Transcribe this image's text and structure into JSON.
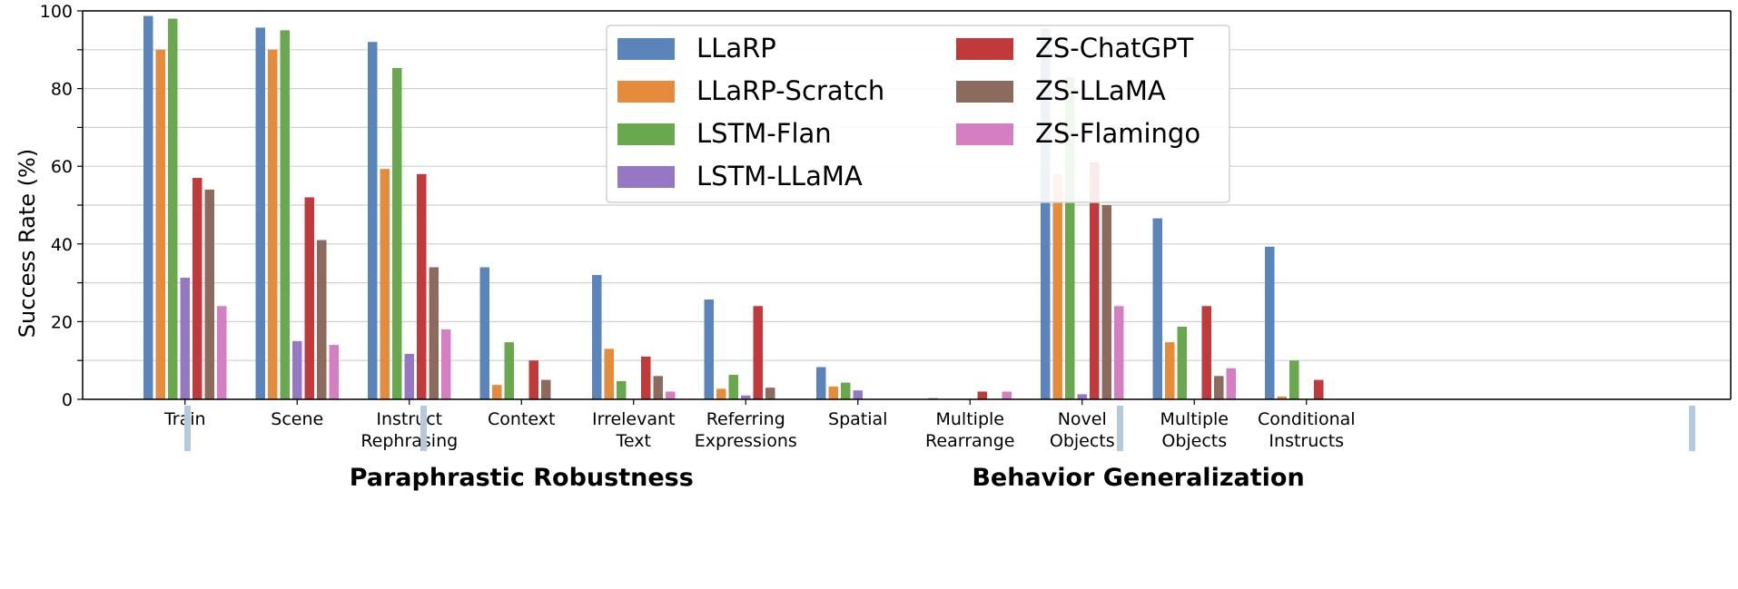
{
  "chart_data": {
    "type": "bar",
    "ylabel": "Success Rate (%)",
    "ylim": [
      0,
      100
    ],
    "yticks": [
      0,
      20,
      40,
      60,
      80,
      100
    ],
    "grid": true,
    "legend_position": "top-center",
    "categories": [
      [
        "Train"
      ],
      [
        "Scene"
      ],
      [
        "Instruct",
        "Rephrasing"
      ],
      [
        "Context"
      ],
      [
        "Irrelevant",
        "Text"
      ],
      [
        "Referring",
        "Expressions"
      ],
      [
        "Spatial"
      ],
      [
        "Multiple",
        "Rearrange"
      ],
      [
        "Novel",
        "Objects"
      ],
      [
        "Multiple",
        "Objects"
      ],
      [
        "Conditional",
        "Instructs"
      ]
    ],
    "series": [
      {
        "name": "LLaRP",
        "color": "#5b84bb",
        "values": [
          98.7,
          95.7,
          92,
          34,
          32,
          25.7,
          8.3,
          0.3,
          95.4,
          46.6,
          39.3
        ]
      },
      {
        "name": "LLaRP-Scratch",
        "color": "#e68a3c",
        "values": [
          90,
          90,
          59.3,
          3.7,
          13,
          2.7,
          3.3,
          0,
          58,
          14.7,
          0.7
        ]
      },
      {
        "name": "LSTM-Flan",
        "color": "#6aa84f",
        "values": [
          98,
          95,
          85.3,
          14.7,
          4.7,
          6.3,
          4.3,
          0,
          83,
          18.7,
          10
        ]
      },
      {
        "name": "LSTM-LLaMA",
        "color": "#9677c4",
        "values": [
          31.3,
          15,
          11.7,
          0,
          0,
          1,
          2.3,
          0,
          1.3,
          0,
          0
        ]
      },
      {
        "name": "ZS-ChatGPT",
        "color": "#c0393b",
        "values": [
          57,
          52,
          58,
          10,
          11,
          24,
          0,
          2,
          61,
          24,
          5
        ]
      },
      {
        "name": "ZS-LLaMA",
        "color": "#8c6a5d",
        "values": [
          54,
          41,
          34,
          5,
          6,
          3,
          0,
          0,
          50,
          6,
          0
        ]
      },
      {
        "name": "ZS-Flamingo",
        "color": "#d57fc2",
        "values": [
          24,
          14,
          18,
          0,
          2,
          0,
          0,
          2,
          24,
          8,
          0
        ]
      }
    ],
    "groups": [
      {
        "label": "Paraphrastic Robustness",
        "from": 0,
        "to": 6
      },
      {
        "label": "Behavior Generalization",
        "from": 7,
        "to": 10
      }
    ],
    "group_separator_color": "#b4c9dc"
  }
}
